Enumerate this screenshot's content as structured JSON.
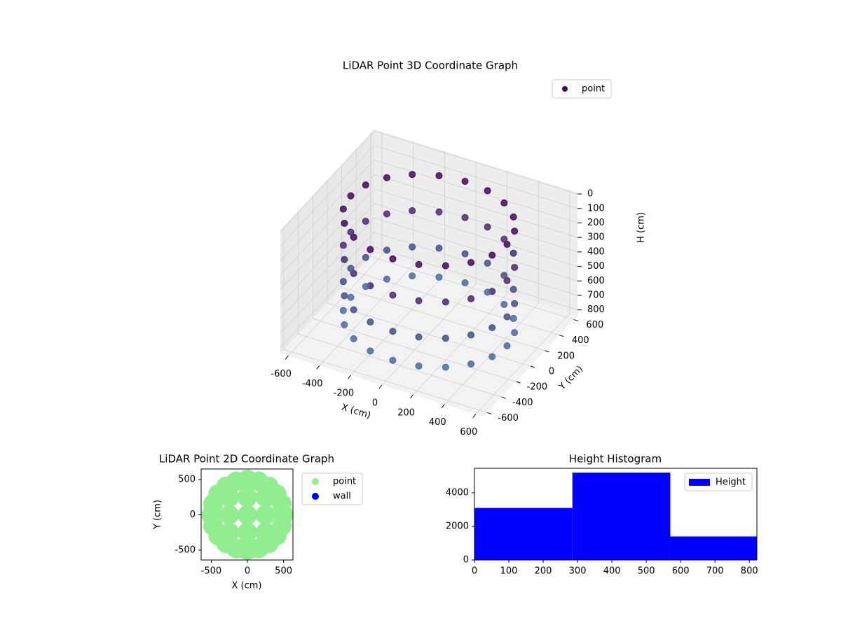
{
  "chart_data": [
    {
      "type": "scatter3d",
      "title": "LiDAR Point 3D Coordinate Graph",
      "xlabel": "X (cm)",
      "ylabel": "Y (cm)",
      "zlabel": "H (cm)",
      "xlim": [
        -650,
        650
      ],
      "ylim": [
        -650,
        650
      ],
      "zlim": [
        840,
        -10
      ],
      "xticks": [
        -600,
        -400,
        -200,
        0,
        200,
        400,
        600
      ],
      "yticks": [
        -600,
        -400,
        -200,
        0,
        200,
        400,
        600
      ],
      "zticks": [
        0,
        100,
        200,
        300,
        400,
        500,
        600,
        700,
        800
      ],
      "colormap": [
        "#440154",
        "#4f76a4"
      ],
      "series": [
        {
          "name": "point",
          "x": [
            500,
            476,
            405,
            294,
            155,
            0,
            -155,
            -294,
            -405,
            -476,
            -500,
            -476,
            -405,
            -294,
            -155,
            0,
            155,
            294,
            405,
            476,
            500,
            476,
            405,
            294,
            155,
            0,
            -155,
            -294,
            -405,
            -476,
            -500,
            -476,
            -405,
            -294,
            -155,
            0,
            155,
            294,
            405,
            476,
            500,
            476,
            405,
            294,
            155,
            0,
            -155,
            -294,
            -405,
            -476,
            -500,
            -476,
            -405,
            -294,
            -155,
            0,
            155,
            294,
            405,
            476,
            500,
            476,
            405,
            294,
            155,
            0,
            -155,
            -294,
            -405,
            -476,
            -500,
            -476,
            -405,
            -294,
            -155,
            0,
            155,
            294,
            405,
            476
          ],
          "y": [
            0,
            155,
            294,
            405,
            476,
            500,
            476,
            405,
            294,
            155,
            0,
            -155,
            -294,
            -405,
            -476,
            -500,
            -476,
            -405,
            -294,
            -155,
            0,
            155,
            294,
            405,
            476,
            500,
            476,
            405,
            294,
            155,
            0,
            -155,
            -294,
            -405,
            -476,
            -500,
            -476,
            -405,
            -294,
            -155,
            0,
            155,
            294,
            405,
            476,
            500,
            476,
            405,
            294,
            155,
            0,
            -155,
            -294,
            -405,
            -476,
            -500,
            -476,
            -405,
            -294,
            -155,
            0,
            155,
            294,
            405,
            476,
            500,
            476,
            405,
            294,
            155,
            0,
            -155,
            -294,
            -405,
            -476,
            -500,
            -476,
            -405,
            -294,
            -155
          ],
          "z": [
            50,
            50,
            50,
            50,
            50,
            50,
            50,
            50,
            50,
            50,
            50,
            50,
            50,
            50,
            50,
            50,
            50,
            50,
            50,
            50,
            300,
            300,
            300,
            300,
            300,
            300,
            300,
            300,
            300,
            300,
            300,
            300,
            300,
            300,
            300,
            300,
            300,
            300,
            300,
            300,
            550,
            550,
            550,
            550,
            550,
            550,
            550,
            550,
            550,
            550,
            550,
            550,
            550,
            550,
            550,
            550,
            550,
            550,
            550,
            550,
            750,
            750,
            750,
            750,
            750,
            750,
            750,
            750,
            750,
            750,
            750,
            750,
            750,
            750,
            750,
            750,
            750,
            750,
            750,
            750
          ]
        }
      ]
    },
    {
      "type": "scatter",
      "title": "LiDAR Point 2D Coordinate Graph",
      "xlabel": "X (cm)",
      "ylabel": "Y (cm)",
      "xlim": [
        -640,
        630
      ],
      "ylim": [
        -640,
        650
      ],
      "xticks": [
        -500,
        0,
        500
      ],
      "yticks": [
        -500,
        0,
        500
      ],
      "series": [
        {
          "name": "point",
          "color": "#90ee90",
          "x": [
            500,
            476,
            405,
            294,
            155,
            0,
            -155,
            -294,
            -405,
            -476,
            -500,
            -476,
            -405,
            -294,
            -155,
            0,
            155,
            294,
            405,
            476,
            0,
            250,
            -250,
            0,
            0,
            250,
            -250,
            250,
            -250
          ],
          "y": [
            0,
            155,
            294,
            405,
            476,
            500,
            476,
            405,
            294,
            155,
            0,
            -155,
            -294,
            -405,
            -476,
            -500,
            -476,
            -405,
            -294,
            -155,
            0,
            0,
            0,
            250,
            -250,
            250,
            250,
            -250,
            -250
          ]
        },
        {
          "name": "wall",
          "color": "#0000ff",
          "x": [],
          "y": []
        }
      ]
    },
    {
      "type": "histogram",
      "title": "Height Histogram",
      "bins": [
        0,
        285,
        570,
        855
      ],
      "xlim": [
        0,
        822
      ],
      "ylim": [
        0,
        5460
      ],
      "xticks": [
        0,
        100,
        200,
        300,
        400,
        500,
        600,
        700,
        800
      ],
      "yticks": [
        0,
        2000,
        4000
      ],
      "series": [
        {
          "name": "Height",
          "color": "#0000ff",
          "values": [
            3100,
            5200,
            1400
          ]
        }
      ]
    }
  ]
}
